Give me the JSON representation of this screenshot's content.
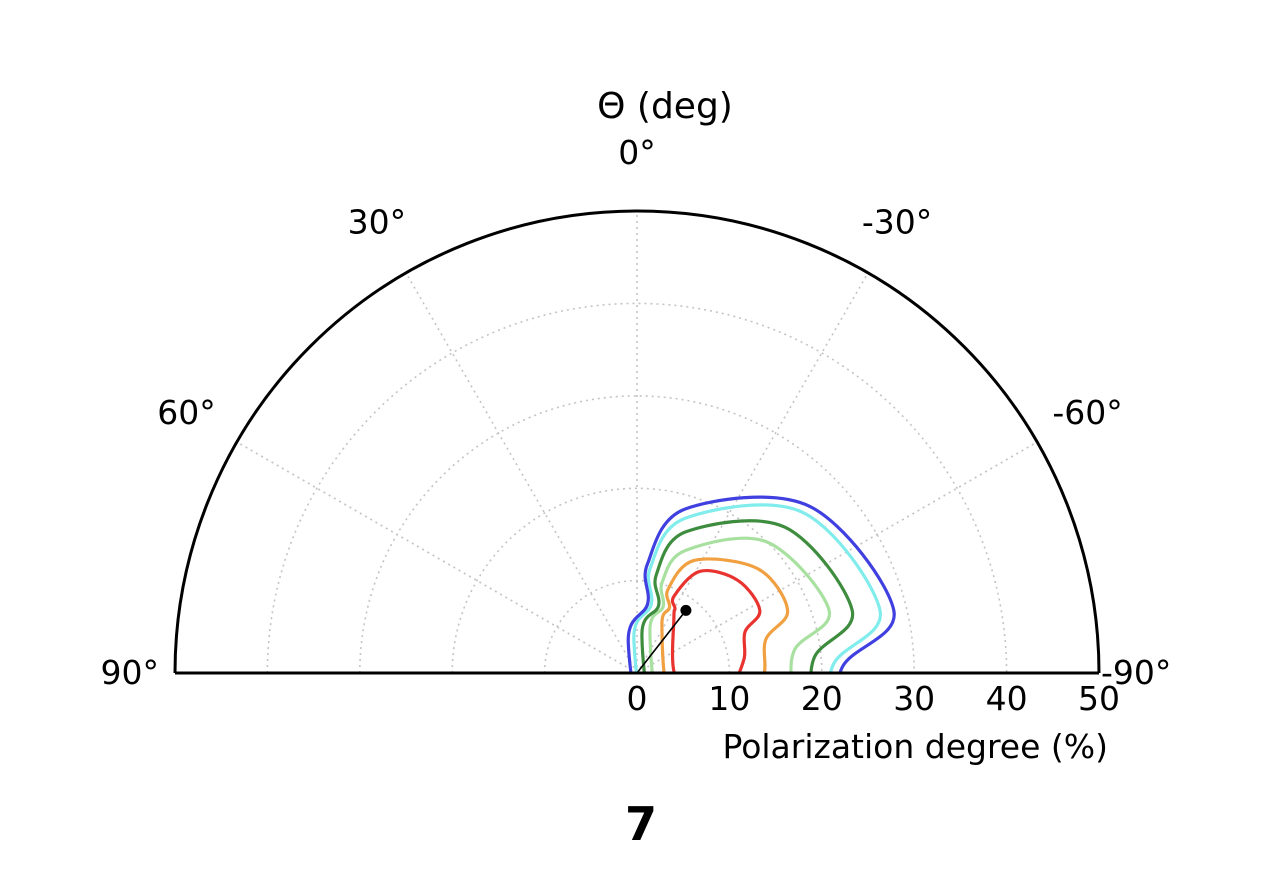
{
  "chart_data": {
    "type": "polar-contour",
    "title": "Θ (deg)",
    "radial_label": "Polarization degree (%)",
    "theta_range": [
      -90,
      90
    ],
    "r_range": [
      0,
      50
    ],
    "radial_ticks": [
      0,
      10,
      20,
      30,
      40,
      50
    ],
    "angle_ticks": [
      {
        "value": 0,
        "label": "0°"
      },
      {
        "value": 30,
        "label": "30°"
      },
      {
        "value": -30,
        "label": "-30°"
      },
      {
        "value": 60,
        "label": "60°"
      },
      {
        "value": -60,
        "label": "-60°"
      },
      {
        "value": 90,
        "label": "90°"
      },
      {
        "value": -90,
        "label": "-90°"
      }
    ],
    "grid": true,
    "best_fit": {
      "r": 8.6,
      "theta_deg": -38
    },
    "contours": [
      {
        "color": "#e8332f",
        "points": [
          [
            0,
            8.0
          ],
          [
            -20,
            6.8
          ],
          [
            -40,
            8.2
          ],
          [
            -60,
            9.5
          ],
          [
            -80,
            9.0
          ],
          [
            -100,
            7.0
          ],
          [
            -150,
            1.5
          ],
          [
            -190,
            1.2
          ],
          [
            -230,
            2.0
          ],
          [
            -290,
            4.5
          ],
          [
            -330,
            6.5
          ]
        ]
      },
      {
        "color": "#f0a040",
        "points": [
          [
            0,
            11.0
          ],
          [
            -20,
            9.2
          ],
          [
            -40,
            11.0
          ],
          [
            -60,
            12.8
          ],
          [
            -80,
            12.5
          ],
          [
            -100,
            10.0
          ],
          [
            -150,
            3.0
          ],
          [
            -190,
            1.8
          ],
          [
            -230,
            3.0
          ],
          [
            -280,
            5.5
          ],
          [
            -330,
            9.0
          ]
        ]
      },
      {
        "color": "#a8e0a0",
        "points": [
          [
            0,
            15.5
          ],
          [
            -20,
            12.5
          ],
          [
            -40,
            14.5
          ],
          [
            -60,
            16.8
          ],
          [
            -80,
            16.8
          ],
          [
            -100,
            13.5
          ],
          [
            -150,
            4.5
          ],
          [
            -190,
            2.5
          ],
          [
            -230,
            4.0
          ],
          [
            -270,
            6.5
          ],
          [
            -320,
            11.5
          ]
        ]
      },
      {
        "color": "#3e8c3e",
        "points": [
          [
            0,
            18.0
          ],
          [
            -20,
            14.8
          ],
          [
            -40,
            17.2
          ],
          [
            -60,
            19.2
          ],
          [
            -80,
            19.0
          ],
          [
            -100,
            15.5
          ],
          [
            -150,
            5.5
          ],
          [
            -190,
            3.0
          ],
          [
            -230,
            5.0
          ],
          [
            -270,
            8.5
          ],
          [
            -320,
            14.0
          ]
        ]
      },
      {
        "color": "#80ecec",
        "points": [
          [
            0,
            21.0
          ],
          [
            -20,
            17.0
          ],
          [
            -40,
            19.5
          ],
          [
            -60,
            21.5
          ],
          [
            -80,
            21.0
          ],
          [
            -100,
            17.5
          ],
          [
            -150,
            6.5
          ],
          [
            -190,
            3.8
          ],
          [
            -230,
            6.0
          ],
          [
            -270,
            10.0
          ],
          [
            -320,
            16.5
          ]
        ]
      },
      {
        "color": "#4040e0",
        "points": [
          [
            0,
            22.5
          ],
          [
            -20,
            18.0
          ],
          [
            -40,
            20.8
          ],
          [
            -60,
            22.8
          ],
          [
            -80,
            22.2
          ],
          [
            -100,
            18.5
          ],
          [
            -150,
            7.2
          ],
          [
            -190,
            4.2
          ],
          [
            -230,
            6.5
          ],
          [
            -270,
            11.0
          ],
          [
            -320,
            17.5
          ]
        ]
      }
    ]
  },
  "figure_number": "7"
}
